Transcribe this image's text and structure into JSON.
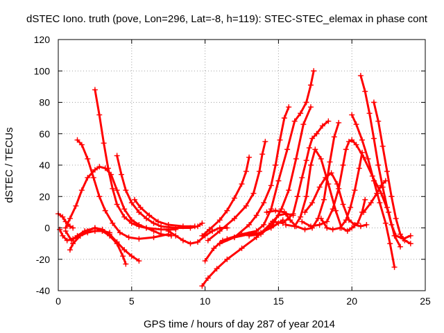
{
  "chart_data": {
    "type": "scatter",
    "title": "dSTEC Iono. truth (pove, Lon=296, Lat=-8, h=119): STEC-STEC_elemax in phase cont",
    "xlabel": "GPS time / hours of day 287 of year 2014",
    "ylabel": "dSTEC  / TECUs",
    "xlim": [
      0,
      25
    ],
    "ylim": [
      -40,
      120
    ],
    "xticks": [
      "0",
      "5",
      "10",
      "15",
      "20",
      "25"
    ],
    "yticks": [
      "-40",
      "-20",
      "0",
      "20",
      "40",
      "60",
      "80",
      "100",
      "120"
    ],
    "grid": true,
    "marker": "plus",
    "color": "#ff0000",
    "series": [
      {
        "points": [
          [
            0.0,
            9
          ],
          [
            0.3,
            7
          ],
          [
            0.5,
            4
          ],
          [
            0.8,
            1
          ],
          [
            1.0,
            0
          ]
        ]
      },
      {
        "points": [
          [
            0.1,
            -1
          ],
          [
            0.3,
            -5
          ],
          [
            0.6,
            -8
          ],
          [
            1.0,
            -7
          ],
          [
            1.5,
            -5
          ],
          [
            2.0,
            -3
          ],
          [
            2.5,
            -2
          ],
          [
            3.0,
            -2
          ],
          [
            3.5,
            -3
          ]
        ]
      },
      {
        "points": [
          [
            0.5,
            -2
          ],
          [
            0.9,
            -8
          ],
          [
            1.3,
            -5
          ],
          [
            1.8,
            -2
          ],
          [
            2.5,
            0
          ],
          [
            3.0,
            -2
          ],
          [
            3.5,
            -5
          ],
          [
            4.0,
            -10
          ],
          [
            4.4,
            -18
          ],
          [
            4.6,
            -23
          ]
        ]
      },
      {
        "points": [
          [
            0.8,
            -14
          ],
          [
            1.0,
            -10
          ],
          [
            1.5,
            -5
          ],
          [
            2.0,
            -2
          ],
          [
            2.5,
            0
          ],
          [
            3.0,
            -1
          ],
          [
            3.5,
            -4
          ],
          [
            4.0,
            -9
          ],
          [
            4.5,
            -14
          ],
          [
            5.0,
            -18
          ],
          [
            5.5,
            -21
          ]
        ]
      },
      {
        "points": [
          [
            0.5,
            0
          ],
          [
            0.8,
            6
          ],
          [
            1.2,
            14
          ],
          [
            1.6,
            24
          ],
          [
            2.0,
            32
          ],
          [
            2.5,
            37
          ],
          [
            2.8,
            39
          ],
          [
            3.2,
            38
          ],
          [
            3.6,
            34
          ],
          [
            4.0,
            24
          ],
          [
            4.5,
            12
          ],
          [
            5.0,
            5
          ],
          [
            5.5,
            2
          ],
          [
            6.0,
            0
          ],
          [
            6.5,
            -2
          ],
          [
            7.0,
            -4
          ],
          [
            7.7,
            -5
          ]
        ]
      },
      {
        "points": [
          [
            1.3,
            56
          ],
          [
            1.6,
            53
          ],
          [
            2.0,
            44
          ],
          [
            2.4,
            32
          ],
          [
            2.8,
            20
          ],
          [
            3.2,
            11
          ],
          [
            3.7,
            3
          ],
          [
            4.2,
            -3
          ],
          [
            4.8,
            -6
          ],
          [
            5.5,
            -7
          ],
          [
            6.5,
            -6
          ],
          [
            7.5,
            -4
          ]
        ]
      },
      {
        "points": [
          [
            2.5,
            88
          ],
          [
            2.8,
            72
          ],
          [
            3.1,
            54
          ],
          [
            3.4,
            38
          ],
          [
            3.7,
            25
          ],
          [
            4.0,
            15
          ],
          [
            4.5,
            7
          ],
          [
            5.0,
            3
          ],
          [
            5.5,
            1
          ],
          [
            6.0,
            0
          ],
          [
            7.0,
            -1
          ],
          [
            8.0,
            -1
          ]
        ]
      },
      {
        "points": [
          [
            4.0,
            46
          ],
          [
            4.3,
            34
          ],
          [
            4.6,
            24
          ],
          [
            5.0,
            16
          ],
          [
            5.5,
            10
          ],
          [
            6.0,
            6
          ],
          [
            6.5,
            3
          ],
          [
            7.0,
            1
          ],
          [
            8.0,
            0
          ],
          [
            9.0,
            0
          ],
          [
            9.5,
            1
          ],
          [
            9.8,
            3
          ]
        ]
      },
      {
        "points": [
          [
            5.2,
            18
          ],
          [
            5.6,
            13
          ],
          [
            6.2,
            8
          ],
          [
            6.8,
            4
          ],
          [
            7.5,
            2
          ],
          [
            8.5,
            1
          ],
          [
            9.3,
            1
          ]
        ]
      },
      {
        "points": [
          [
            7.5,
            -2
          ],
          [
            8.0,
            -5
          ],
          [
            8.5,
            -8
          ],
          [
            9.0,
            -10
          ],
          [
            9.5,
            -9
          ],
          [
            10.0,
            -5
          ],
          [
            10.5,
            -2
          ],
          [
            11.0,
            0
          ],
          [
            11.5,
            0
          ]
        ]
      },
      {
        "points": [
          [
            9.8,
            -37
          ],
          [
            10.2,
            -32
          ],
          [
            10.8,
            -26
          ],
          [
            11.5,
            -20
          ],
          [
            12.5,
            -13
          ],
          [
            13.5,
            -6
          ],
          [
            14.5,
            3
          ],
          [
            15.0,
            8
          ],
          [
            15.5,
            9
          ],
          [
            16.0,
            8
          ]
        ]
      },
      {
        "points": [
          [
            10.0,
            -21
          ],
          [
            10.6,
            -13
          ],
          [
            11.2,
            -8
          ],
          [
            12.0,
            -6
          ],
          [
            13.0,
            -4
          ],
          [
            13.8,
            -3
          ],
          [
            14.5,
            0
          ],
          [
            15.0,
            3
          ],
          [
            15.3,
            5
          ]
        ]
      },
      {
        "points": [
          [
            9.8,
            -5
          ],
          [
            10.3,
            -1
          ],
          [
            11.0,
            5
          ],
          [
            11.5,
            11
          ],
          [
            12.0,
            19
          ],
          [
            12.5,
            28
          ],
          [
            12.8,
            36
          ],
          [
            13.0,
            45
          ]
        ]
      },
      {
        "points": [
          [
            10.2,
            -8
          ],
          [
            11.0,
            -2
          ],
          [
            12.0,
            6
          ],
          [
            12.8,
            14
          ],
          [
            13.3,
            22
          ],
          [
            13.7,
            36
          ],
          [
            13.9,
            47
          ],
          [
            14.1,
            55
          ]
        ]
      },
      {
        "points": [
          [
            11.0,
            -10
          ],
          [
            12.0,
            -6
          ],
          [
            13.0,
            2
          ],
          [
            13.5,
            8
          ],
          [
            14.0,
            16
          ],
          [
            14.5,
            27
          ],
          [
            14.8,
            40
          ],
          [
            15.1,
            56
          ],
          [
            15.4,
            70
          ],
          [
            15.7,
            77
          ]
        ]
      },
      {
        "points": [
          [
            11.5,
            -7
          ],
          [
            12.5,
            -4
          ],
          [
            13.5,
            -2
          ],
          [
            14.0,
            2
          ],
          [
            14.5,
            12
          ],
          [
            15.0,
            30
          ],
          [
            15.6,
            50
          ],
          [
            16.1,
            68
          ],
          [
            16.5,
            73
          ],
          [
            16.9,
            80
          ],
          [
            17.2,
            91
          ],
          [
            17.4,
            100
          ]
        ]
      },
      {
        "points": [
          [
            13.0,
            -5
          ],
          [
            13.8,
            -4
          ],
          [
            14.6,
            2
          ],
          [
            15.2,
            12
          ],
          [
            15.7,
            24
          ],
          [
            16.2,
            44
          ],
          [
            16.7,
            66
          ],
          [
            17.2,
            77
          ]
        ]
      },
      {
        "points": [
          [
            14.2,
            10
          ],
          [
            14.8,
            11
          ],
          [
            15.4,
            10
          ],
          [
            15.8,
            5
          ],
          [
            16.2,
            1
          ],
          [
            16.8,
            -1
          ],
          [
            17.3,
            0
          ],
          [
            17.7,
            6
          ],
          [
            18.1,
            18
          ],
          [
            18.5,
            42
          ],
          [
            18.8,
            58
          ],
          [
            19.1,
            67
          ]
        ]
      },
      {
        "points": [
          [
            14.6,
            4
          ],
          [
            15.3,
            3
          ],
          [
            16.0,
            9
          ],
          [
            16.3,
            20
          ],
          [
            16.6,
            32
          ],
          [
            16.9,
            43
          ],
          [
            17.1,
            51
          ],
          [
            17.3,
            57
          ],
          [
            17.6,
            60
          ],
          [
            18.0,
            65
          ],
          [
            18.4,
            68
          ]
        ]
      },
      {
        "points": [
          [
            15.5,
            2
          ],
          [
            16.1,
            1
          ],
          [
            16.5,
            7
          ],
          [
            16.9,
            20
          ],
          [
            17.2,
            40
          ],
          [
            17.5,
            50
          ],
          [
            17.9,
            44
          ],
          [
            18.4,
            28
          ],
          [
            18.9,
            11
          ],
          [
            19.3,
            0
          ],
          [
            19.7,
            -2
          ],
          [
            20.0,
            0
          ],
          [
            20.4,
            3
          ],
          [
            20.7,
            10
          ],
          [
            20.9,
            18
          ]
        ]
      },
      {
        "points": [
          [
            16.6,
            4
          ],
          [
            17.2,
            1
          ],
          [
            17.8,
            2
          ],
          [
            18.3,
            4
          ],
          [
            18.7,
            12
          ],
          [
            19.1,
            25
          ],
          [
            19.4,
            40
          ],
          [
            19.6,
            50
          ],
          [
            19.8,
            55
          ],
          [
            20.0,
            56
          ],
          [
            20.3,
            53
          ],
          [
            20.8,
            45
          ],
          [
            21.4,
            33
          ],
          [
            22.0,
            22
          ],
          [
            22.5,
            10
          ],
          [
            22.9,
            -5
          ],
          [
            23.3,
            -12
          ]
        ]
      },
      {
        "points": [
          [
            16.8,
            10
          ],
          [
            17.3,
            16
          ],
          [
            17.8,
            26
          ],
          [
            18.2,
            32
          ],
          [
            18.6,
            35
          ],
          [
            19.0,
            28
          ],
          [
            19.4,
            15
          ],
          [
            19.8,
            5
          ],
          [
            20.2,
            2
          ],
          [
            20.6,
            1
          ],
          [
            21.0,
            2
          ]
        ]
      },
      {
        "points": [
          [
            17.9,
            6
          ],
          [
            18.3,
            0
          ],
          [
            18.7,
            -1
          ],
          [
            19.2,
            0
          ],
          [
            19.6,
            5
          ],
          [
            19.9,
            13
          ],
          [
            20.2,
            24
          ],
          [
            20.5,
            38
          ],
          [
            20.7,
            48
          ]
        ]
      },
      {
        "points": [
          [
            20.0,
            72
          ],
          [
            20.3,
            66
          ],
          [
            20.7,
            56
          ],
          [
            21.1,
            44
          ],
          [
            21.5,
            30
          ],
          [
            21.9,
            16
          ],
          [
            22.3,
            3
          ],
          [
            22.6,
            -10
          ],
          [
            22.9,
            -25
          ]
        ]
      },
      {
        "points": [
          [
            20.6,
            97
          ],
          [
            20.9,
            87
          ],
          [
            21.2,
            73
          ],
          [
            21.5,
            57
          ],
          [
            21.8,
            40
          ],
          [
            22.1,
            26
          ],
          [
            22.4,
            13
          ],
          [
            22.7,
            2
          ],
          [
            23.0,
            -5
          ],
          [
            23.5,
            -7
          ],
          [
            24.0,
            -5
          ]
        ]
      },
      {
        "points": [
          [
            21.5,
            80
          ],
          [
            21.8,
            68
          ],
          [
            22.1,
            52
          ],
          [
            22.4,
            36
          ],
          [
            22.7,
            20
          ],
          [
            23.0,
            6
          ],
          [
            23.3,
            -4
          ],
          [
            23.6,
            -8
          ],
          [
            24.0,
            -10
          ]
        ]
      },
      {
        "points": [
          [
            20.8,
            10
          ],
          [
            21.3,
            16
          ],
          [
            21.7,
            22
          ],
          [
            22.0,
            27
          ],
          [
            22.3,
            30
          ]
        ]
      }
    ]
  }
}
